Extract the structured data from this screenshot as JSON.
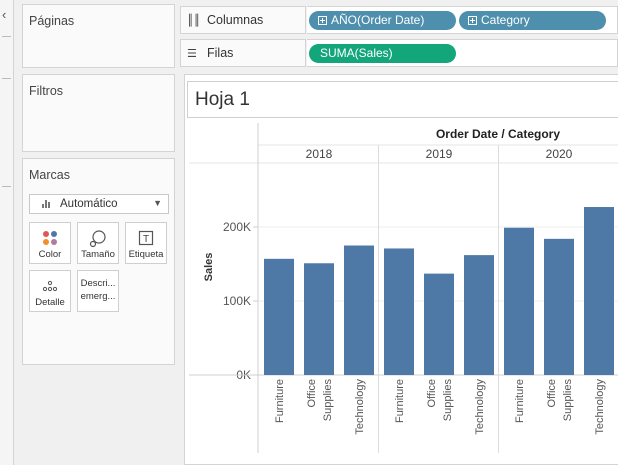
{
  "left_panel": {
    "pages_title": "Páginas",
    "filters_title": "Filtros",
    "marks_title": "Marcas",
    "mark_type": "Automático",
    "mark_buttons": {
      "color": "Color",
      "size": "Tamaño",
      "label": "Etiqueta",
      "detail": "Detalle",
      "tooltip_line1": "Descri...",
      "tooltip_line2": "emerg..."
    }
  },
  "shelves": {
    "columns_label": "Columnas",
    "columns_pills": [
      "AÑO(Order Date)",
      "Category"
    ],
    "rows_label": "Filas",
    "rows_pills": [
      "SUMA(Sales)"
    ]
  },
  "sheet": {
    "title": "Hoja 1"
  },
  "colors": {
    "bar": "#4e79a7",
    "dimension_pill": "#4d8fac",
    "measure_pill": "#13a67b"
  },
  "chart_data": {
    "type": "bar",
    "header": "Order Date / Category",
    "ylabel": "Sales",
    "ylim": [
      0,
      240000
    ],
    "y_ticks": [
      0,
      100000,
      200000
    ],
    "y_tick_labels": [
      "0K",
      "100K",
      "200K"
    ],
    "groups": [
      {
        "year": "2018",
        "categories": [
          "Furniture",
          "Office Supplies",
          "Technology"
        ],
        "values": [
          157000,
          151000,
          175000
        ]
      },
      {
        "year": "2019",
        "categories": [
          "Furniture",
          "Office Supplies",
          "Technology"
        ],
        "values": [
          171000,
          137000,
          162000
        ]
      },
      {
        "year": "2020",
        "categories": [
          "Furniture",
          "Office Supplies",
          "Technology"
        ],
        "values": [
          199000,
          184000,
          227000
        ]
      }
    ],
    "category_label_lines": {
      "Furniture": [
        "Furniture"
      ],
      "Office Supplies": [
        "Office",
        "Supplies"
      ],
      "Technology": [
        "Technology"
      ]
    }
  }
}
